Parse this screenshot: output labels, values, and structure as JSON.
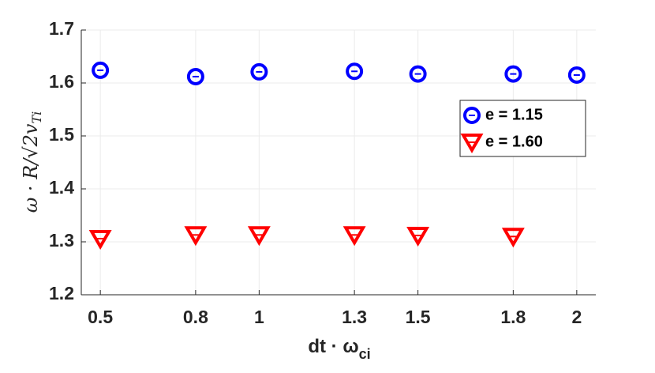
{
  "chart_data": {
    "type": "scatter",
    "xlabel": "dt · ω",
    "xlabel_sub": "ci",
    "ylabel": "ω · R/√2v",
    "ylabel_sub": "Ti",
    "xlim": [
      0.44,
      2.06
    ],
    "ylim": [
      1.2,
      1.7
    ],
    "xticks": [
      0.5,
      0.8,
      1,
      1.3,
      1.5,
      1.8,
      2
    ],
    "yticks": [
      1.2,
      1.3,
      1.4,
      1.5,
      1.6,
      1.7
    ],
    "grid": true,
    "legend": "northeast",
    "series": [
      {
        "name": "e = 1.15",
        "color": "#0000ff",
        "marker": "o",
        "x": [
          0.5,
          0.8,
          1,
          1.3,
          1.5,
          1.8,
          2
        ],
        "values": [
          1.624,
          1.612,
          1.621,
          1.622,
          1.617,
          1.617,
          1.615
        ]
      },
      {
        "name": "e = 1.60",
        "color": "#ff0000",
        "marker": "v",
        "x": [
          0.5,
          0.8,
          1,
          1.3,
          1.5,
          1.8
        ],
        "values": [
          1.306,
          1.313,
          1.313,
          1.313,
          1.312,
          1.31
        ]
      }
    ]
  }
}
